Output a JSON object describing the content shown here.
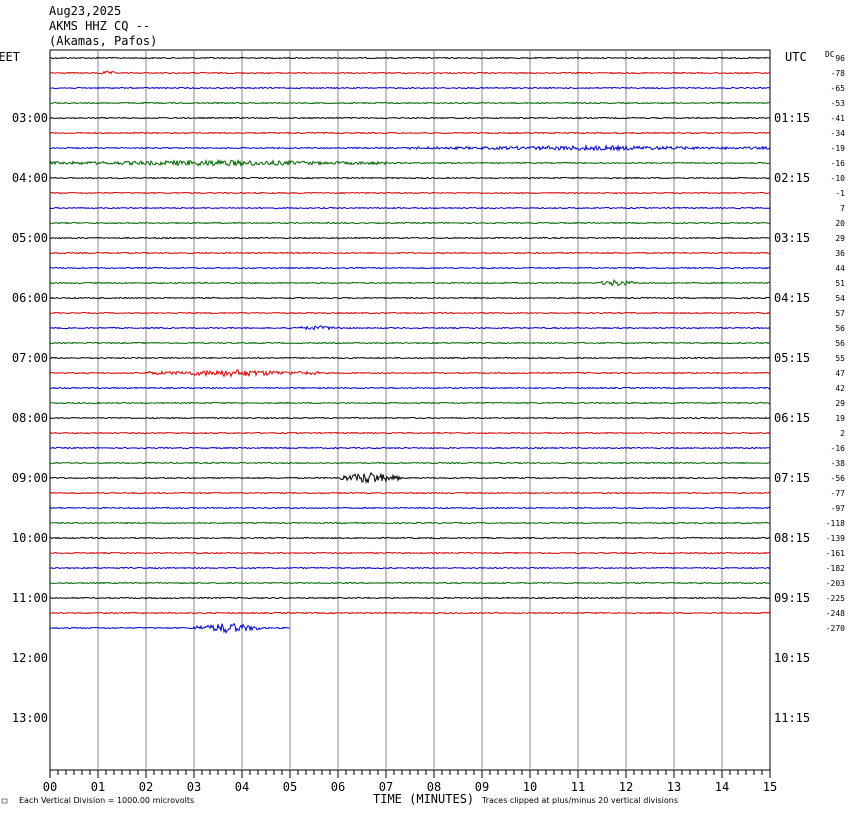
{
  "header": {
    "date": "Aug23,2025",
    "station": "AKMS HHZ CQ --",
    "location": "(Akamas, Pafos)"
  },
  "chart_data": {
    "type": "line",
    "title": "",
    "left_timezone": "EET",
    "right_timezone": "UTC",
    "dc_label": "DC",
    "xlabel": "TIME (MINUTES)",
    "xlim": [
      0,
      15
    ],
    "x_ticks": [
      "00",
      "01",
      "02",
      "03",
      "04",
      "05",
      "06",
      "07",
      "08",
      "09",
      "10",
      "11",
      "12",
      "13",
      "14",
      "15"
    ],
    "left_hour_labels": [
      "03:00",
      "04:00",
      "05:00",
      "06:00",
      "07:00",
      "08:00",
      "09:00",
      "10:00",
      "11:00",
      "12:00",
      "13:00"
    ],
    "right_hour_labels": [
      "01:15",
      "02:15",
      "03:15",
      "04:15",
      "05:15",
      "06:15",
      "07:15",
      "08:15",
      "09:15",
      "10:15",
      "11:15"
    ],
    "dc_offsets": [
      "96",
      "-78",
      "-65",
      "-53",
      "-41",
      "-34",
      "-19",
      "-16",
      "-10",
      "-1",
      "7",
      "20",
      "29",
      "36",
      "44",
      "51",
      "54",
      "57",
      "56",
      "56",
      "55",
      "47",
      "42",
      "29",
      "19",
      "2",
      "-16",
      "-38",
      "-56",
      "-77",
      "-97",
      "-118",
      "-139",
      "-161",
      "-182",
      "-203",
      "-225",
      "-248",
      "-270"
    ],
    "trace_colors": [
      "#000000",
      "#dd0000",
      "#0000cc",
      "#006600"
    ],
    "trace_count": 39,
    "last_trace_end_minute": 5.0,
    "events": [
      {
        "trace": 1,
        "start_min": 1.0,
        "end_min": 1.4,
        "amplitude": 1.5
      },
      {
        "trace": 6,
        "start_min": 7.5,
        "end_min": 15.0,
        "amplitude": 1.8
      },
      {
        "trace": 7,
        "start_min": 0.0,
        "end_min": 7.0,
        "amplitude": 2.5
      },
      {
        "trace": 15,
        "start_min": 11.4,
        "end_min": 12.2,
        "amplitude": 3.0
      },
      {
        "trace": 18,
        "start_min": 5.0,
        "end_min": 6.2,
        "amplitude": 1.6
      },
      {
        "trace": 21,
        "start_min": 2.0,
        "end_min": 5.6,
        "amplitude": 3.0
      },
      {
        "trace": 28,
        "start_min": 6.0,
        "end_min": 7.3,
        "amplitude": 6.0
      },
      {
        "trace": 38,
        "start_min": 3.0,
        "end_min": 4.4,
        "amplitude": 5.0
      }
    ],
    "clip_divisions": 20,
    "scale_note": "Each Vertical Division = 1000.00 microvolts",
    "clip_note": "Traces clipped at plus/minus 20 vertical divisions"
  }
}
